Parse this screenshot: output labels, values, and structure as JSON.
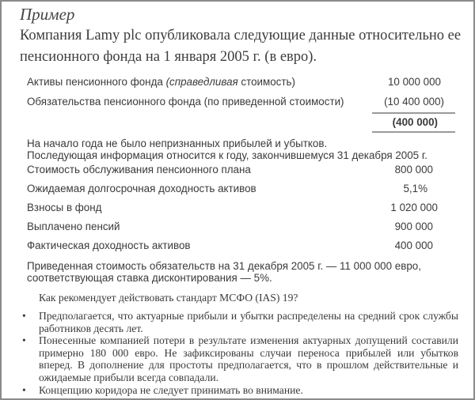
{
  "title": "Пример",
  "intro": [
    "Компания Lamy plc опубликовала следующие данные относительно ее",
    "пенсионного фонда на 1 января 2005 г. (в евро)."
  ],
  "balance": {
    "assets_label_pre": "Активы пенсионного фонда ",
    "assets_label_italic": "(справедливая",
    "assets_label_post": " стоимость)",
    "assets_value": "10 000 000",
    "liabilities_label": "Обязательства пенсионного фонда (по приведенной стоимости)",
    "liabilities_value": "(10 400 000)",
    "total": "(400 000)"
  },
  "notes": [
    "На начало года не было непризнанных прибылей и убытков.",
    "Последующая информация относится к году, закончившемуся 31 декабря 2005 г."
  ],
  "items": [
    {
      "label": "Стоимость обслуживания пенсионного плана",
      "value": "800 000"
    },
    {
      "label": "Ожидаемая долгосрочная доходность активов",
      "value": "5,1%"
    },
    {
      "label": "Взносы в фонд",
      "value": "1 020 000"
    },
    {
      "label": "Выплачено пенсий",
      "value": "900 000"
    },
    {
      "label": "Фактическая доходность активов",
      "value": "400 000"
    }
  ],
  "closing": [
    "Приведенная стоимость обязательств на 31 декабря 2005 г. — 11 000 000 евро,",
    "соответствующая ставка дисконтирования — 5%."
  ],
  "question": "Как рекомендует действовать стандарт МСФО (IAS) 19?",
  "bullet_symbol": "•",
  "bullets": [
    "Предполагается, что актуарные прибыли и убытки распределены на средний срок службы работников десять лет.",
    "Понесенные компанией потери в результате изменения актуарных допущений составили примерно 180 000 евро. Не зафиксированы случаи переноса прибылей или убытков вперед. В дополнение для простоты предполагается, что в прошлом действительные и ожидаемые прибыли всегда совпадали.",
    "Концепцию коридора не следует принимать во внимание."
  ]
}
